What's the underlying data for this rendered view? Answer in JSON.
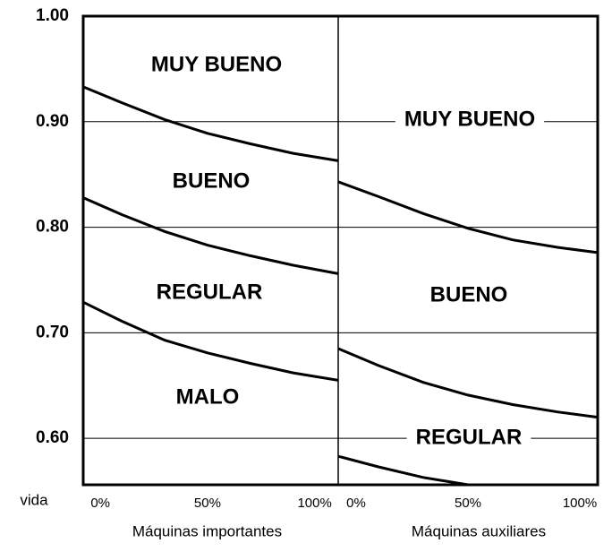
{
  "chart_data": [
    {
      "type": "line",
      "x_label": "Máquinas importantes",
      "y_label": "vida",
      "xlim": [
        -8,
        111
      ],
      "xticks": [
        {
          "value": 0,
          "label": "0%"
        },
        {
          "value": 50,
          "label": "50%"
        },
        {
          "value": 100,
          "label": "100%"
        }
      ],
      "ylim": [
        0.556,
        1.0
      ],
      "yticks": [
        {
          "value": 0.6,
          "label": "0.60"
        },
        {
          "value": 0.7,
          "label": "0.70"
        },
        {
          "value": 0.8,
          "label": "0.80"
        },
        {
          "value": 0.9,
          "label": "0.90"
        },
        {
          "value": 1.0,
          "label": "1.00"
        }
      ],
      "grid": true,
      "annotations": [
        "MUY BUENO",
        "BUENO",
        "REGULAR",
        "MALO"
      ],
      "series": [
        {
          "color": "#000000",
          "x": [
            -8,
            10,
            30,
            50,
            70,
            90,
            111
          ],
          "values": [
            0.933,
            0.918,
            0.902,
            0.889,
            0.879,
            0.87,
            0.863
          ]
        },
        {
          "color": "#000000",
          "x": [
            -8,
            10,
            30,
            50,
            70,
            90,
            111
          ],
          "values": [
            0.828,
            0.812,
            0.796,
            0.783,
            0.773,
            0.764,
            0.756
          ]
        },
        {
          "color": "#000000",
          "x": [
            -8,
            10,
            30,
            50,
            70,
            90,
            111
          ],
          "values": [
            0.729,
            0.711,
            0.693,
            0.681,
            0.671,
            0.662,
            0.655
          ]
        }
      ]
    },
    {
      "type": "line",
      "x_label": "Máquinas auxiliares",
      "xlim": [
        -8,
        108
      ],
      "xticks": [
        {
          "value": 0,
          "label": "0%"
        },
        {
          "value": 50,
          "label": "50%"
        },
        {
          "value": 100,
          "label": "100%"
        }
      ],
      "ylim": [
        0.556,
        1.0
      ],
      "yticks": [
        0.6,
        0.7,
        0.8,
        0.9,
        1.0
      ],
      "grid": true,
      "annotations": [
        "MUY BUENO",
        "BUENO",
        "REGULAR"
      ],
      "series": [
        {
          "color": "#000000",
          "x": [
            -8,
            10,
            30,
            50,
            70,
            90,
            108
          ],
          "values": [
            0.843,
            0.829,
            0.813,
            0.799,
            0.788,
            0.781,
            0.776
          ]
        },
        {
          "color": "#000000",
          "x": [
            -8,
            10,
            30,
            50,
            70,
            90,
            108
          ],
          "values": [
            0.685,
            0.669,
            0.653,
            0.641,
            0.632,
            0.625,
            0.62
          ]
        },
        {
          "color": "#000000",
          "x": [
            -8,
            10,
            30,
            50
          ],
          "values": [
            0.583,
            0.573,
            0.563,
            0.556
          ]
        }
      ]
    }
  ]
}
